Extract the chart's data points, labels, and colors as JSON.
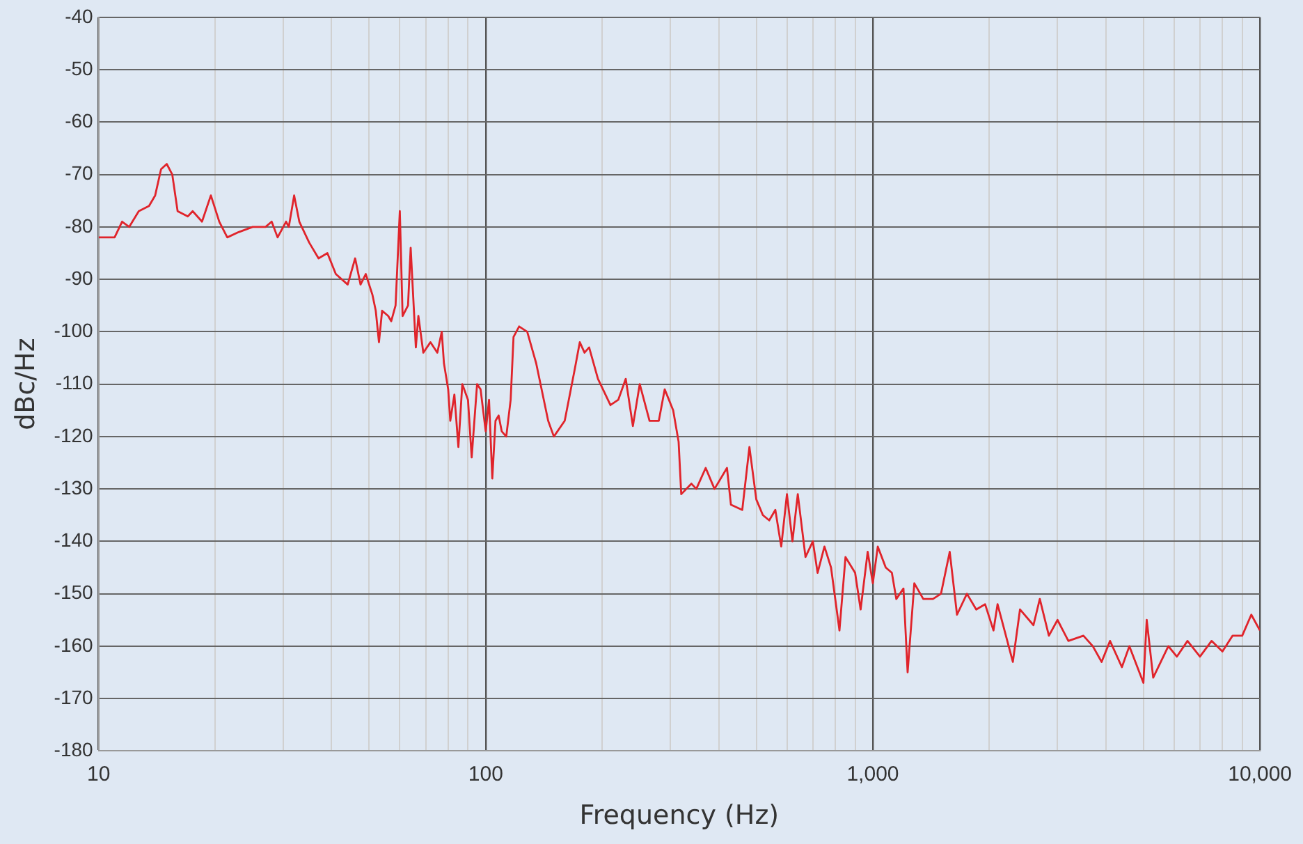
{
  "chart_data": {
    "type": "line",
    "xlabel": "Frequency (Hz)",
    "ylabel": "dBc/Hz",
    "log": "x",
    "grid": true,
    "legend": false,
    "marker": "none",
    "line_style": "solid",
    "xlim": [
      10,
      10000
    ],
    "ylim": [
      -180,
      -40
    ],
    "xticks": [
      10,
      {
        "value": 20,
        "label": null
      },
      {
        "value": 30,
        "label": null
      },
      {
        "value": 40,
        "label": null
      },
      {
        "value": 50,
        "label": null
      },
      {
        "value": 60,
        "label": null
      },
      {
        "value": 70,
        "label": null
      },
      {
        "value": 80,
        "label": null
      },
      {
        "value": 90,
        "label": null
      },
      100,
      {
        "value": 200,
        "label": null
      },
      {
        "value": 300,
        "label": null
      },
      {
        "value": 400,
        "label": null
      },
      {
        "value": 500,
        "label": null
      },
      {
        "value": 600,
        "label": null
      },
      {
        "value": 700,
        "label": null
      },
      {
        "value": 800,
        "label": null
      },
      {
        "value": 900,
        "label": null
      },
      {
        "value": 1000,
        "label": "1,000"
      },
      {
        "value": 2000,
        "label": null
      },
      {
        "value": 3000,
        "label": null
      },
      {
        "value": 4000,
        "label": null
      },
      {
        "value": 5000,
        "label": null
      },
      {
        "value": 6000,
        "label": null
      },
      {
        "value": 7000,
        "label": null
      },
      {
        "value": 8000,
        "label": null
      },
      {
        "value": 9000,
        "label": null
      },
      {
        "value": 10000,
        "label": "10,000"
      }
    ],
    "yticks": [
      -180,
      -170,
      -160,
      -150,
      -140,
      -130,
      -120,
      -110,
      -100,
      -90,
      -80,
      -70,
      -60,
      -50,
      -40
    ],
    "series": [
      {
        "color": "#e0242b",
        "x": [
          10,
          11,
          11.5,
          12,
          12.7,
          13.5,
          14,
          14.5,
          15,
          15.5,
          16,
          17,
          17.5,
          18.5,
          19.5,
          20.5,
          21.5,
          23,
          25,
          27,
          28,
          29,
          30.5,
          31,
          31.5,
          32,
          33,
          35,
          37,
          39,
          41,
          44,
          46,
          47.5,
          49,
          51,
          52,
          53,
          54,
          56,
          57,
          58.5,
          60,
          61,
          63,
          64,
          66,
          67,
          69,
          72,
          75,
          77,
          78,
          80,
          81,
          83,
          85,
          87,
          90,
          92,
          95,
          97,
          100,
          102,
          104,
          106,
          108,
          110,
          113,
          116,
          118,
          122,
          128,
          135,
          145,
          150,
          160,
          170,
          175,
          180,
          185,
          195,
          210,
          220,
          230,
          240,
          250,
          265,
          280,
          290,
          305,
          315,
          320,
          340,
          350,
          370,
          390,
          420,
          430,
          460,
          480,
          500,
          520,
          540,
          560,
          580,
          600,
          620,
          640,
          670,
          700,
          720,
          750,
          780,
          820,
          850,
          900,
          930,
          970,
          1000,
          1030,
          1080,
          1120,
          1150,
          1200,
          1230,
          1280,
          1350,
          1430,
          1500,
          1580,
          1650,
          1750,
          1850,
          1950,
          2050,
          2100,
          2300,
          2400,
          2600,
          2700,
          2850,
          3000,
          3200,
          3500,
          3700,
          3900,
          4100,
          4400,
          4600,
          5000,
          5100,
          5300,
          5800,
          6100,
          6500,
          7000,
          7500,
          8000,
          8500,
          9000,
          9500,
          10000
        ],
        "values": [
          -82,
          -82,
          -79,
          -80,
          -77,
          -76,
          -74,
          -69,
          -68,
          -70,
          -77,
          -78,
          -77,
          -79,
          -74,
          -79,
          -82,
          -81,
          -80,
          -80,
          -79,
          -82,
          -79,
          -80,
          -77,
          -74,
          -79,
          -83,
          -86,
          -85,
          -89,
          -91,
          -86,
          -91,
          -89,
          -93,
          -96,
          -102,
          -96,
          -97,
          -98,
          -95,
          -77,
          -97,
          -95,
          -84,
          -103,
          -97,
          -104,
          -102,
          -104,
          -100,
          -106,
          -111,
          -117,
          -112,
          -122,
          -110,
          -113,
          -124,
          -110,
          -111,
          -119,
          -113,
          -128,
          -117,
          -116,
          -119,
          -120,
          -113,
          -101,
          -99,
          -100,
          -106,
          -117,
          -120,
          -117,
          -107,
          -102,
          -104,
          -103,
          -109,
          -114,
          -113,
          -109,
          -118,
          -110,
          -117,
          -117,
          -111,
          -115,
          -121,
          -131,
          -129,
          -130,
          -126,
          -130,
          -126,
          -133,
          -134,
          -122,
          -132,
          -135,
          -136,
          -134,
          -141,
          -131,
          -140,
          -131,
          -143,
          -140,
          -146,
          -141,
          -145,
          -157,
          -143,
          -146,
          -153,
          -142,
          -148,
          -141,
          -145,
          -146,
          -151,
          -149,
          -165,
          -148,
          -151,
          -151,
          -150,
          -142,
          -154,
          -150,
          -153,
          -152,
          -157,
          -152,
          -163,
          -153,
          -156,
          -151,
          -158,
          -155,
          -159,
          -158,
          -160,
          -163,
          -159,
          -164,
          -160,
          -167,
          -155,
          -166,
          -160,
          -162,
          -159,
          -162,
          -159,
          -161,
          -158,
          -158,
          -154,
          -157
        ]
      }
    ]
  }
}
